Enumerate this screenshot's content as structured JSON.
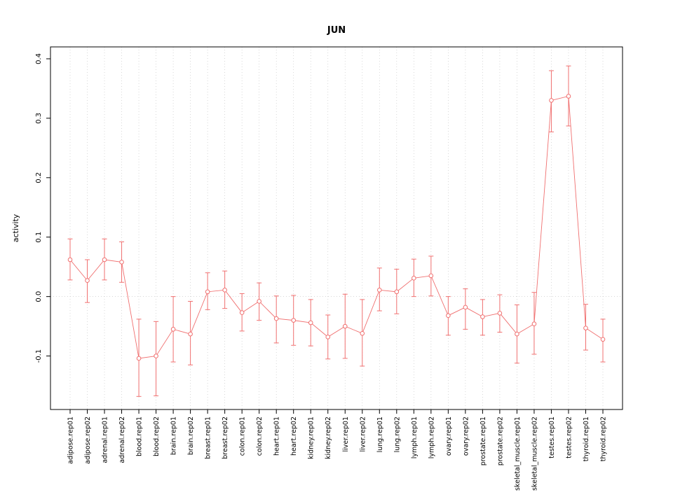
{
  "title": "JUN",
  "chart_data": {
    "type": "scatter",
    "title": "JUN",
    "xlabel": "",
    "ylabel": "activity",
    "ylim": [
      -0.19,
      0.42
    ],
    "yticks": [
      -0.1,
      0.0,
      0.1,
      0.2,
      0.3,
      0.4
    ],
    "grid": "vertical-dotted",
    "zero_line_y": 0,
    "point_color": "#f07070",
    "grid_color": "#c8c8c8",
    "axis_color": "#000000",
    "categories": [
      "adipose.rep01",
      "adipose.rep02",
      "adrenal.rep01",
      "adrenal.rep02",
      "blood.rep01",
      "blood.rep02",
      "brain.rep01",
      "brain.rep02",
      "breast.rep01",
      "breast.rep02",
      "colon.rep01",
      "colon.rep02",
      "heart.rep01",
      "heart.rep02",
      "kidney.rep01",
      "kidney.rep02",
      "liver.rep01",
      "liver.rep02",
      "lung.rep01",
      "lung.rep02",
      "lymph.rep01",
      "lymph.rep02",
      "ovary.rep01",
      "ovary.rep02",
      "prostate.rep01",
      "prostate.rep02",
      "skeletal_muscle.rep01",
      "skeletal_muscle.rep02",
      "testes.rep01",
      "testes.rep02",
      "thyroid.rep01",
      "thyroid.rep02"
    ],
    "values": [
      0.062,
      0.027,
      0.062,
      0.058,
      -0.104,
      -0.1,
      -0.055,
      -0.063,
      0.008,
      0.011,
      -0.027,
      -0.008,
      -0.037,
      -0.04,
      -0.044,
      -0.068,
      -0.05,
      -0.062,
      0.011,
      0.008,
      0.031,
      0.035,
      -0.032,
      -0.018,
      -0.034,
      -0.028,
      -0.063,
      -0.046,
      0.33,
      0.337,
      -0.053,
      -0.072
    ],
    "error_low": [
      0.028,
      -0.01,
      0.028,
      0.024,
      -0.168,
      -0.167,
      -0.11,
      -0.115,
      -0.022,
      -0.02,
      -0.058,
      -0.04,
      -0.078,
      -0.082,
      -0.083,
      -0.105,
      -0.104,
      -0.117,
      -0.024,
      -0.029,
      0.0,
      0.001,
      -0.065,
      -0.055,
      -0.065,
      -0.06,
      -0.112,
      -0.097,
      0.277,
      0.287,
      -0.09,
      -0.11
    ],
    "error_high": [
      0.097,
      0.062,
      0.097,
      0.092,
      -0.038,
      -0.042,
      0.0,
      -0.008,
      0.04,
      0.043,
      0.005,
      0.023,
      0.001,
      0.002,
      -0.005,
      -0.031,
      0.004,
      -0.005,
      0.048,
      0.046,
      0.063,
      0.068,
      0.0,
      0.013,
      -0.005,
      0.003,
      -0.014,
      0.007,
      0.38,
      0.388,
      -0.013,
      -0.038
    ]
  }
}
